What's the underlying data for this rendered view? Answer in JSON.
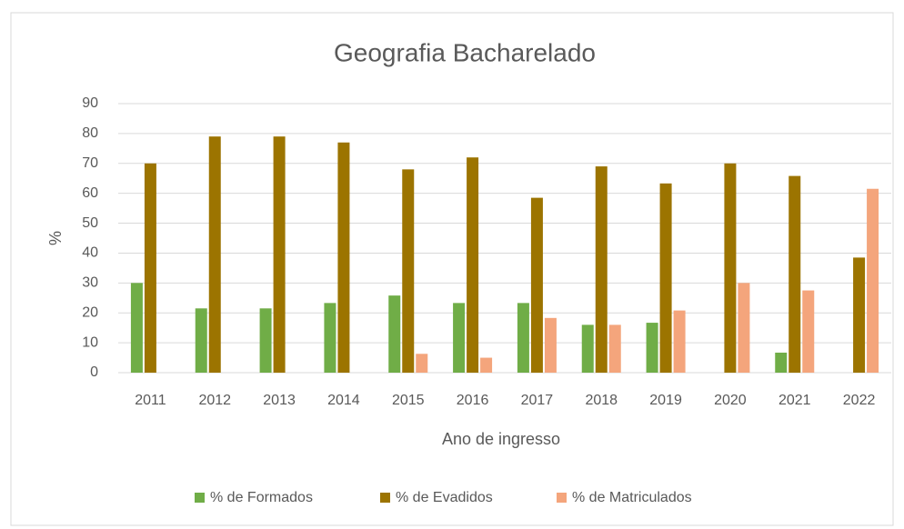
{
  "chart_data": {
    "type": "bar",
    "title": "Geografia Bacharelado",
    "x_label": "Ano de ingresso",
    "y_label": "%",
    "categories": [
      "2011",
      "2012",
      "2013",
      "2014",
      "2015",
      "2016",
      "2017",
      "2018",
      "2019",
      "2020",
      "2021",
      "2022"
    ],
    "series": [
      {
        "name": "% de Formados",
        "color": "#70ad47",
        "values": [
          30,
          21.5,
          21.5,
          23.3,
          25.8,
          23.3,
          23.3,
          16,
          16.7,
          0,
          6.7,
          0
        ]
      },
      {
        "name": "% de Evadidos",
        "color": "#9c7400",
        "values": [
          70,
          79,
          79,
          77,
          68,
          72,
          58.5,
          69,
          63.3,
          70,
          65.8,
          38.5
        ]
      },
      {
        "name": "% de Matriculados",
        "color": "#f4a57c",
        "values": [
          0,
          0,
          0,
          0,
          6.3,
          5,
          18.3,
          16,
          20.8,
          30,
          27.5,
          61.5
        ]
      }
    ],
    "ylim": [
      0,
      90
    ],
    "yticks": [
      0,
      10,
      20,
      30,
      40,
      50,
      60,
      70,
      80,
      90
    ],
    "grid": true,
    "legend": "bottom"
  }
}
